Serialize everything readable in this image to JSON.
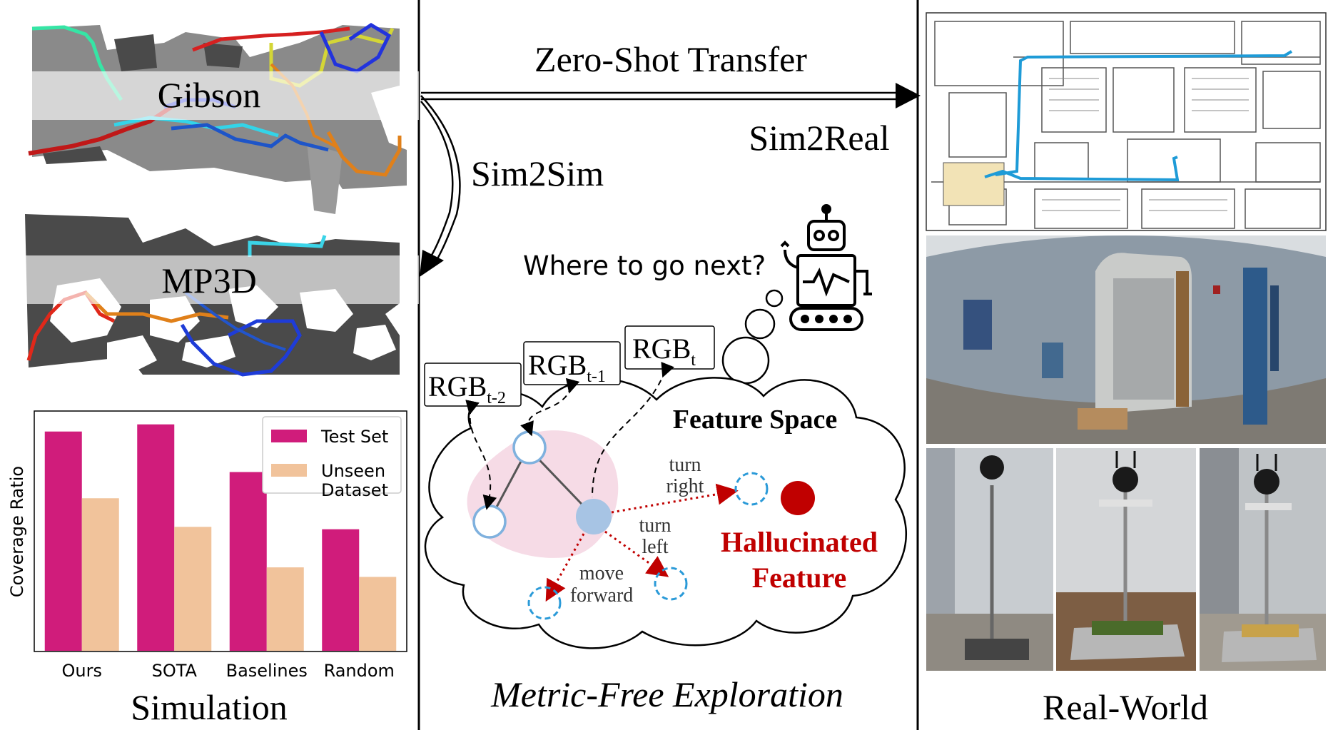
{
  "left_panel": {
    "map1_label": "Gibson",
    "map2_label": "MP3D",
    "caption": "Simulation"
  },
  "center_panel": {
    "arrow_top_label": "Zero-Shot Transfer",
    "arrow_sim2sim_label": "Sim2Sim",
    "arrow_sim2real_label": "Sim2Real",
    "question": "Where to go next?",
    "rgb_labels": [
      {
        "base": "RGB",
        "sub": "t-2"
      },
      {
        "base": "RGB",
        "sub": "t-1"
      },
      {
        "base": "RGB",
        "sub": "t"
      }
    ],
    "feature_space_title": "Feature Space",
    "actions": {
      "turn_right": [
        "turn",
        "right"
      ],
      "turn_left": [
        "turn",
        "left"
      ],
      "move_forward": [
        "move",
        "forward"
      ]
    },
    "hallucinated": [
      "Hallucinated",
      "Feature"
    ],
    "caption": "Metric-Free Exploration"
  },
  "right_panel": {
    "caption": "Real-World"
  },
  "chart_data": {
    "type": "bar",
    "categories": [
      "Ours",
      "SOTA",
      "Baselines",
      "Random"
    ],
    "ylabel": "Coverage Ratio",
    "xlabel": "",
    "ylim": [
      0,
      1.0
    ],
    "legend_position": "top-right",
    "series": [
      {
        "name": "Test Set",
        "color": "#d01c7b",
        "values": [
          0.92,
          0.95,
          0.75,
          0.51
        ]
      },
      {
        "name": "Unseen\nDataset",
        "color": "#f1c39b",
        "values": [
          0.64,
          0.52,
          0.35,
          0.31
        ]
      }
    ]
  },
  "colors": {
    "panel_border": "#000000",
    "map_floor": "#8a8a8a",
    "map_wall": "#4a4a4a",
    "node_fill": "#a7c4e4",
    "node_ring": "#7fb1de",
    "hallucinated": "#c00000",
    "blob": "#f6dbe6",
    "corridor_path": "#1e9bd7"
  }
}
